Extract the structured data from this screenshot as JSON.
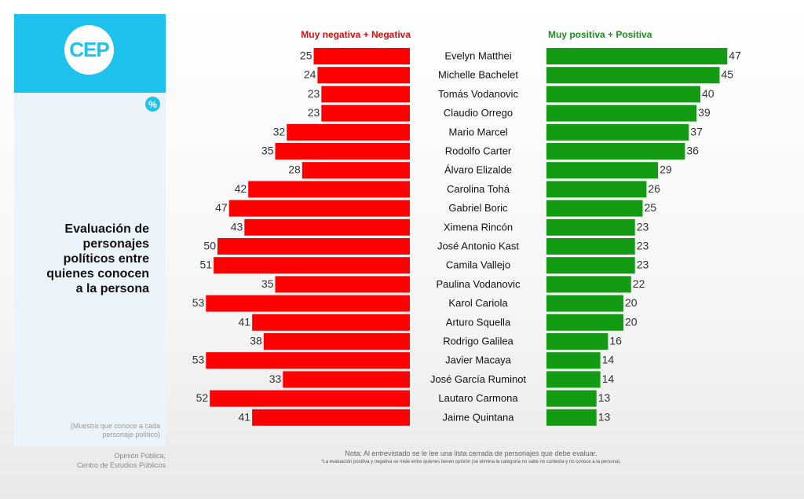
{
  "sidebar": {
    "logo_text": "CEP",
    "badge": "%",
    "title_lines": [
      "Evaluación de",
      "personajes",
      "políticos entre",
      "quienes conocen",
      "a la persona"
    ],
    "sample_note_lines": [
      "(Muestra que conoce a cada",
      "personaje político)"
    ],
    "source_lines": [
      "Opinión Pública,",
      "Centro de Estudios Públicos"
    ]
  },
  "footer": {
    "note": "Nota: Al entrevistado se le lee una lista cerrada de personajes que debe evaluar.",
    "subnote": "*La evaluación positiva y negativa se mide entre quienes tienen opinión (se elimina la categoría no sabe no contesta y no conoce a la persona)."
  },
  "colors": {
    "negative": "#ff0000",
    "positive": "#149b14",
    "accent": "#1ec3ed"
  },
  "chart_data": {
    "type": "bar",
    "orientation": "horizontal-diverging",
    "categories": [
      "Evelyn Matthei",
      "Michelle Bachelet",
      "Tomás Vodanovic",
      "Claudio Orrego",
      "Mario Marcel",
      "Rodolfo Carter",
      "Álvaro Elizalde",
      "Carolina Tohá",
      "Gabriel Boric",
      "Ximena Rincón",
      "José Antonio Kast",
      "Camila Vallejo",
      "Paulina Vodanovic",
      "Karol Cariola",
      "Arturo Squella",
      "Rodrigo Galilea",
      "Javier Macaya",
      "José García Ruminot",
      "Lautaro Carmona",
      "Jaime Quintana"
    ],
    "series": [
      {
        "name": "Muy negativa + Negativa",
        "values": [
          25,
          24,
          23,
          23,
          32,
          35,
          28,
          42,
          47,
          43,
          50,
          51,
          35,
          53,
          41,
          38,
          53,
          33,
          52,
          41
        ]
      },
      {
        "name": "Muy positiva + Positiva",
        "values": [
          47,
          45,
          40,
          39,
          37,
          36,
          29,
          26,
          25,
          23,
          23,
          23,
          22,
          20,
          20,
          16,
          14,
          14,
          13,
          13
        ]
      }
    ],
    "xlim": [
      0,
      55
    ]
  }
}
